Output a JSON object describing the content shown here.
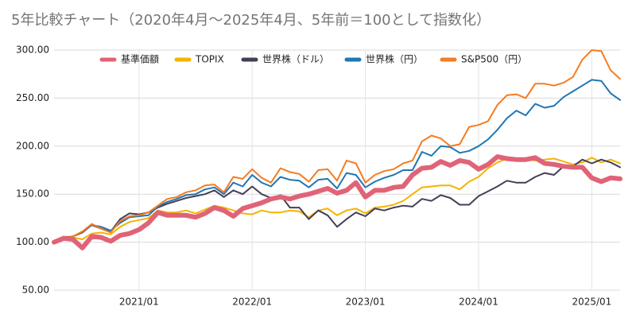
{
  "chart_data": {
    "type": "line",
    "title": "5年比較チャート（2020年4月～2025年4月、5年前＝100として指数化）",
    "categories": [
      null,
      null,
      null,
      null,
      null,
      null,
      null,
      null,
      null,
      "2021/01",
      null,
      null,
      null,
      null,
      null,
      null,
      null,
      null,
      null,
      null,
      null,
      "2022/01",
      null,
      null,
      null,
      null,
      null,
      null,
      null,
      null,
      null,
      null,
      null,
      "2023/01",
      null,
      null,
      null,
      null,
      null,
      null,
      null,
      null,
      null,
      null,
      null,
      "2024/01",
      null,
      null,
      null,
      null,
      null,
      null,
      null,
      null,
      null,
      null,
      null,
      "2025/01",
      null,
      null,
      null
    ],
    "series": [
      {
        "name": "基準価額",
        "color": "#e06377",
        "values": [
          100,
          104,
          103,
          94,
          106,
          105,
          101,
          107,
          109,
          113,
          120,
          131,
          128,
          128,
          128,
          126,
          130,
          136,
          133,
          127,
          135,
          138,
          141,
          145,
          147,
          145,
          148,
          150,
          153,
          156,
          151,
          154,
          162,
          147,
          154,
          154,
          157,
          158,
          170,
          177,
          178,
          184,
          180,
          185,
          183,
          176,
          181,
          189,
          187,
          186,
          186,
          188,
          182,
          181,
          179,
          178,
          178,
          167,
          163,
          167,
          166
        ]
      },
      {
        "name": "TOPIX",
        "color": "#f4b400",
        "values": [
          100,
          106,
          105,
          103,
          109,
          110,
          108,
          116,
          121,
          123,
          125,
          133,
          131,
          131,
          133,
          130,
          134,
          138,
          136,
          133,
          130,
          129,
          133,
          131,
          131,
          133,
          132,
          126,
          133,
          135,
          128,
          133,
          135,
          130,
          136,
          137,
          139,
          143,
          150,
          157,
          158,
          159,
          159,
          155,
          163,
          168,
          177,
          183,
          187,
          186,
          186,
          185,
          186,
          187,
          184,
          181,
          183,
          188,
          183,
          186,
          182
        ]
      },
      {
        "name": "世界株（ドル）",
        "color": "#453f55",
        "values": [
          100,
          105,
          106,
          110,
          118,
          114,
          111,
          124,
          130,
          129,
          131,
          136,
          140,
          143,
          146,
          148,
          150,
          154,
          147,
          154,
          150,
          158,
          150,
          146,
          149,
          136,
          136,
          124,
          133,
          128,
          116,
          124,
          131,
          127,
          135,
          133,
          136,
          138,
          137,
          145,
          143,
          149,
          146,
          139,
          139,
          148,
          153,
          158,
          164,
          162,
          162,
          168,
          172,
          170,
          179,
          179,
          186,
          182,
          186,
          183,
          178
        ]
      },
      {
        "name": "世界株（円）",
        "color": "#1f77b4",
        "values": [
          100,
          104,
          106,
          111,
          118,
          116,
          112,
          120,
          126,
          127,
          128,
          137,
          142,
          145,
          149,
          150,
          155,
          157,
          150,
          162,
          158,
          170,
          162,
          158,
          168,
          165,
          164,
          157,
          165,
          166,
          156,
          172,
          170,
          157,
          163,
          167,
          170,
          175,
          175,
          194,
          190,
          200,
          199,
          193,
          195,
          200,
          207,
          217,
          229,
          237,
          232,
          244,
          240,
          242,
          251,
          257,
          263,
          269,
          268,
          255,
          248
        ]
      },
      {
        "name": "S&P500（円）",
        "color": "#f57c22",
        "values": [
          100,
          104,
          106,
          111,
          119,
          114,
          110,
          122,
          127,
          128,
          131,
          138,
          145,
          147,
          152,
          154,
          159,
          160,
          152,
          168,
          166,
          176,
          167,
          162,
          177,
          173,
          171,
          163,
          175,
          176,
          164,
          185,
          182,
          162,
          170,
          174,
          176,
          182,
          185,
          205,
          211,
          208,
          200,
          202,
          220,
          222,
          226,
          243,
          253,
          254,
          250,
          265,
          265,
          263,
          266,
          272,
          290,
          300,
          299,
          279,
          270
        ]
      }
    ],
    "ylim": [
      50,
      300
    ],
    "yticks": [
      {
        "value": 50,
        "label": "50.00"
      },
      {
        "value": 100,
        "label": "100.00"
      },
      {
        "value": 150,
        "label": "150.00"
      },
      {
        "value": 200,
        "label": "200.00"
      },
      {
        "value": 250,
        "label": "250.00"
      },
      {
        "value": 300,
        "label": "300.00"
      }
    ],
    "grid": true
  }
}
